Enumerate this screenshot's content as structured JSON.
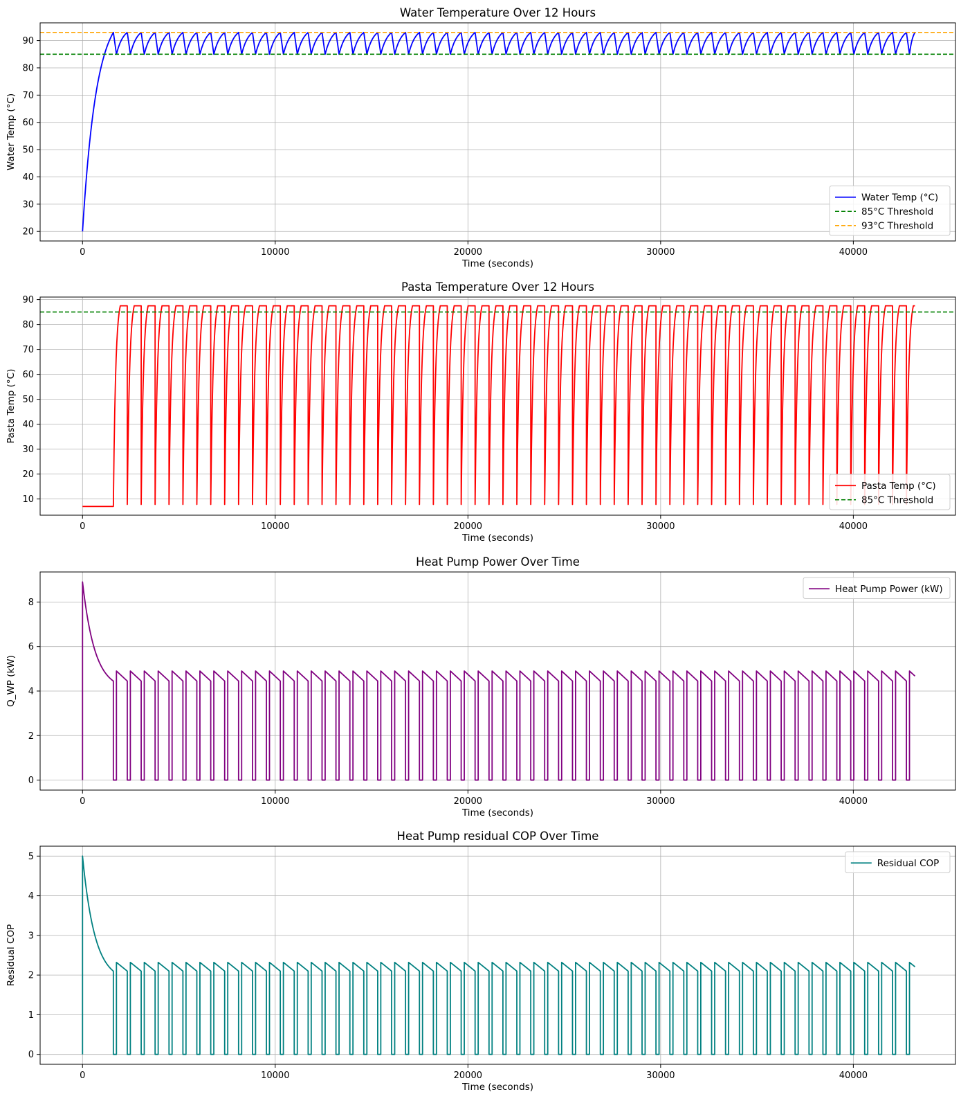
{
  "chart_data": [
    {
      "type": "line",
      "title": "Water Temperature Over 12 Hours",
      "xlabel": "Time (seconds)",
      "ylabel": "Water Temp (°C)",
      "xlim": [
        -2200,
        45300
      ],
      "ylim": [
        16.5,
        96.5
      ],
      "xticks": [
        0,
        10000,
        20000,
        30000,
        40000
      ],
      "yticks": [
        20,
        30,
        40,
        50,
        60,
        70,
        80,
        90
      ],
      "grid": true,
      "legend_position": "lower-right",
      "series": [
        {
          "name": "Water Temp (°C)",
          "color": "#0000ff",
          "style": "solid",
          "width": 1.8,
          "pattern": {
            "kind": "water",
            "t0": 0,
            "start": 20,
            "warmup_end": 1600,
            "peak": 93,
            "low": 85,
            "cycle_start": 1600,
            "period": 722,
            "fall": 160,
            "end": 43200
          }
        },
        {
          "name": "85°C Threshold",
          "color": "#008000",
          "style": "dashed",
          "width": 1.6,
          "hline": 85
        },
        {
          "name": "93°C Threshold",
          "color": "#ffa500",
          "style": "dashed",
          "width": 1.6,
          "hline": 93
        }
      ]
    },
    {
      "type": "line",
      "title": "Pasta Temperature Over 12 Hours",
      "xlabel": "Time (seconds)",
      "ylabel": "Pasta Temp (°C)",
      "xlim": [
        -2200,
        45300
      ],
      "ylim": [
        3.5,
        91.0
      ],
      "xticks": [
        0,
        10000,
        20000,
        30000,
        40000
      ],
      "yticks": [
        10,
        20,
        30,
        40,
        50,
        60,
        70,
        80,
        90
      ],
      "grid": true,
      "legend_position": "lower-right",
      "series": [
        {
          "name": "Pasta Temp (°C)",
          "color": "#ff0000",
          "style": "solid",
          "width": 1.8,
          "pattern": {
            "kind": "pasta",
            "init": 7,
            "hold_until": 1600,
            "min": 7.8,
            "max": 87.5,
            "cycle_start": 1600,
            "period": 722,
            "rise": 360,
            "end": 43200
          }
        },
        {
          "name": "85°C Threshold",
          "color": "#008000",
          "style": "dashed",
          "width": 1.6,
          "hline": 85
        }
      ]
    },
    {
      "type": "line",
      "title": "Heat Pump Power Over Time",
      "xlabel": "Time (seconds)",
      "ylabel": "Q_WP (kW)",
      "xlim": [
        -2200,
        45300
      ],
      "ylim": [
        -0.45,
        9.35
      ],
      "xticks": [
        0,
        10000,
        20000,
        30000,
        40000
      ],
      "yticks": [
        0,
        2,
        4,
        6,
        8
      ],
      "grid": true,
      "legend_position": "upper-right",
      "series": [
        {
          "name": "Heat Pump Power (kW)",
          "color": "#800080",
          "style": "solid",
          "width": 1.8,
          "pattern": {
            "kind": "pump",
            "peak": 8.9,
            "warm_end_value": 4.45,
            "on_high": 4.9,
            "on_low": 4.45,
            "warmup_end": 1600,
            "period": 722,
            "off": 160,
            "end": 43200
          }
        }
      ]
    },
    {
      "type": "line",
      "title": "Heat Pump residual COP Over Time",
      "xlabel": "Time (seconds)",
      "ylabel": "Residual COP",
      "xlim": [
        -2200,
        45300
      ],
      "ylim": [
        -0.25,
        5.25
      ],
      "xticks": [
        0,
        10000,
        20000,
        30000,
        40000
      ],
      "yticks": [
        0,
        1,
        2,
        3,
        4,
        5
      ],
      "grid": true,
      "legend_position": "upper-right",
      "series": [
        {
          "name": "Residual COP",
          "color": "#008080",
          "style": "solid",
          "width": 1.8,
          "pattern": {
            "kind": "pump",
            "peak": 5.0,
            "warm_end_value": 2.1,
            "on_high": 2.32,
            "on_low": 2.1,
            "warmup_end": 1600,
            "period": 722,
            "off": 160,
            "end": 43200
          }
        }
      ]
    }
  ]
}
